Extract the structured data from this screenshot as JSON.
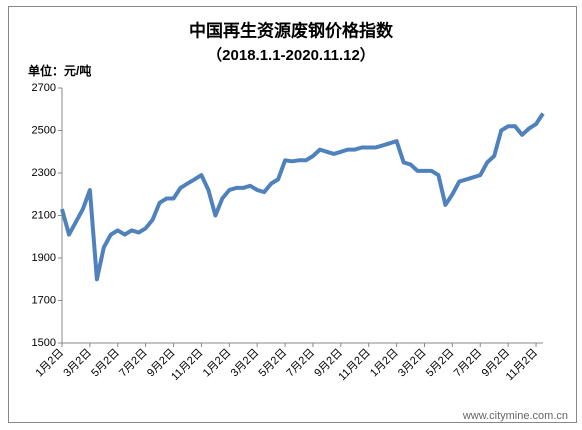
{
  "chart_data": {
    "type": "line",
    "title": "中国再生资源废钢价格指数",
    "subtitle": "（2018.1.1-2020.11.12）",
    "y_label": "单位：元/吨",
    "watermark": "www.citymine.com.cn",
    "categories": [
      "1月2日",
      null,
      null,
      null,
      "3月2日",
      null,
      null,
      null,
      "5月2日",
      null,
      null,
      null,
      "7月2日",
      null,
      null,
      null,
      "9月2日",
      null,
      null,
      null,
      "11月2日",
      null,
      null,
      null,
      "1月2日",
      null,
      null,
      null,
      "3月2日",
      null,
      null,
      null,
      "5月2日",
      null,
      null,
      null,
      "7月2日",
      null,
      null,
      null,
      "9月2日",
      null,
      null,
      null,
      "11月2日",
      null,
      null,
      null,
      "1月2日",
      null,
      null,
      null,
      "3月2日",
      null,
      null,
      null,
      "5月2日",
      null,
      null,
      null,
      "7月2日",
      null,
      null,
      null,
      "9月2日",
      null,
      null,
      null,
      "11月2日",
      null
    ],
    "series": [
      {
        "name": "废钢价格指数",
        "color": "#4f81bd",
        "values": [
          2130,
          2010,
          2070,
          2130,
          2220,
          1800,
          1950,
          2010,
          2030,
          2010,
          2030,
          2020,
          2040,
          2080,
          2160,
          2180,
          2180,
          2230,
          2250,
          2270,
          2290,
          2220,
          2100,
          2180,
          2220,
          2230,
          2230,
          2240,
          2220,
          2210,
          2250,
          2270,
          2360,
          2355,
          2360,
          2360,
          2380,
          2410,
          2400,
          2390,
          2400,
          2410,
          2410,
          2420,
          2420,
          2420,
          2430,
          2440,
          2450,
          2350,
          2340,
          2310,
          2310,
          2310,
          2290,
          2150,
          2200,
          2260,
          2270,
          2280,
          2290,
          2350,
          2380,
          2500,
          2520,
          2520,
          2480,
          2510,
          2530,
          2580
        ]
      }
    ],
    "ylim": [
      1500,
      2700
    ],
    "yticks": [
      1500,
      1700,
      1900,
      2100,
      2300,
      2500,
      2700
    ],
    "grid": false
  }
}
